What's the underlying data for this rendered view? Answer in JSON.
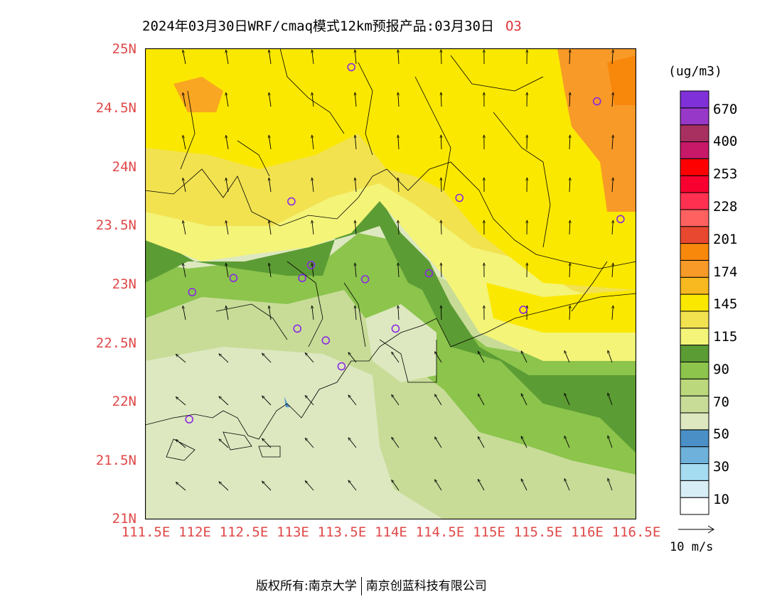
{
  "title": {
    "main": "2024年03月30日WRF/cmaq模式12km预报产品:03月30日",
    "pollutant": "O3"
  },
  "axes": {
    "lat_labels": [
      "25N",
      "24.5N",
      "24N",
      "23.5N",
      "23N",
      "22.5N",
      "22N",
      "21.5N",
      "21N"
    ],
    "lon_labels": [
      "111.5E",
      "112E",
      "112.5E",
      "113E",
      "113.5E",
      "114E",
      "114.5E",
      "115E",
      "115.5E",
      "116E",
      "116.5E"
    ],
    "lat_range": [
      21,
      25
    ],
    "lon_range": [
      111.5,
      116.5
    ]
  },
  "colorbar": {
    "unit": "(ug/m3)",
    "colors": [
      "#ffffff",
      "#d8eef6",
      "#a6dcf2",
      "#6eb2dc",
      "#4a90c6",
      "#dde8c0",
      "#c8dc98",
      "#bcd87c",
      "#8cc44c",
      "#5c9c34",
      "#f4f478",
      "#f2e250",
      "#fbe800",
      "#f8b820",
      "#f89a28",
      "#f8880c",
      "#e84830",
      "#ff6060",
      "#ff3050",
      "#f80030",
      "#ff0000",
      "#c81868",
      "#a83060",
      "#9838c8",
      "#8030d8"
    ],
    "labels": [
      "10",
      "30",
      "50",
      "70",
      "90",
      "115",
      "145",
      "174",
      "201",
      "228",
      "253",
      "400",
      "670"
    ]
  },
  "wind_legend": {
    "label": "10 m/s"
  },
  "stations": [
    {
      "lon": 113.6,
      "lat": 24.84
    },
    {
      "lon": 116.1,
      "lat": 24.55
    },
    {
      "lon": 112.99,
      "lat": 23.7
    },
    {
      "lon": 114.7,
      "lat": 23.73
    },
    {
      "lon": 116.34,
      "lat": 23.55
    },
    {
      "lon": 113.19,
      "lat": 23.16
    },
    {
      "lon": 112.4,
      "lat": 23.05
    },
    {
      "lon": 113.1,
      "lat": 23.05
    },
    {
      "lon": 113.74,
      "lat": 23.04
    },
    {
      "lon": 114.39,
      "lat": 23.09
    },
    {
      "lon": 111.98,
      "lat": 22.93
    },
    {
      "lon": 115.35,
      "lat": 22.78
    },
    {
      "lon": 113.05,
      "lat": 22.62
    },
    {
      "lon": 114.05,
      "lat": 22.62
    },
    {
      "lon": 113.34,
      "lat": 22.52
    },
    {
      "lon": 113.5,
      "lat": 22.3
    },
    {
      "lon": 111.95,
      "lat": 21.85
    }
  ],
  "footer": {
    "left": "版权所有:南京大学",
    "right": "南京创蓝科技有限公司"
  }
}
